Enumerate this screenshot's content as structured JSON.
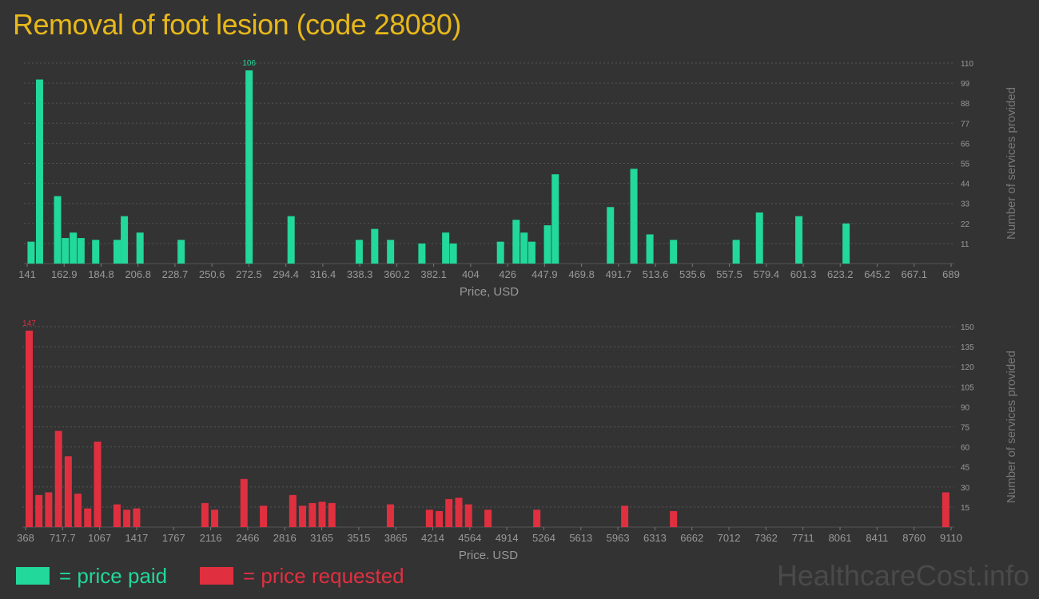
{
  "title": "Removal of foot lesion (code 28080)",
  "legend": {
    "paid_label": "= price paid",
    "requested_label": "= price requested"
  },
  "watermark": "HealthcareCost.info",
  "colors": {
    "background": "#333333",
    "title": "#e8b81a",
    "paid": "#22d89a",
    "requested": "#e03040",
    "axis_text": "#999999"
  },
  "chart_data": [
    {
      "type": "bar",
      "series_name": "price paid",
      "xlabel": "Price, USD",
      "ylabel": "Number of services provided",
      "x_range": [
        141,
        689
      ],
      "x_ticks": [
        "141",
        "162.9",
        "184.8",
        "206.8",
        "228.7",
        "250.6",
        "272.5",
        "294.4",
        "316.4",
        "338.3",
        "360.2",
        "382.1",
        "404",
        "426",
        "447.9",
        "469.8",
        "491.7",
        "513.6",
        "535.6",
        "557.5",
        "579.4",
        "601.3",
        "623.2",
        "645.2",
        "667.1",
        "689"
      ],
      "y_ticks": [
        11,
        22,
        33,
        44,
        55,
        66,
        77,
        88,
        99,
        110
      ],
      "ylim": [
        0,
        110
      ],
      "peak_label": "106",
      "grid": true,
      "bars": [
        {
          "x": 141.2,
          "y": 12
        },
        {
          "x": 146.2,
          "y": 101
        },
        {
          "x": 156.9,
          "y": 37
        },
        {
          "x": 161.5,
          "y": 14
        },
        {
          "x": 166.2,
          "y": 17
        },
        {
          "x": 170.8,
          "y": 14
        },
        {
          "x": 179.5,
          "y": 13
        },
        {
          "x": 192.2,
          "y": 13
        },
        {
          "x": 196.5,
          "y": 26
        },
        {
          "x": 205.8,
          "y": 17
        },
        {
          "x": 230.2,
          "y": 13
        },
        {
          "x": 270.5,
          "y": 106
        },
        {
          "x": 295.4,
          "y": 26
        },
        {
          "x": 335.8,
          "y": 13
        },
        {
          "x": 345.0,
          "y": 19
        },
        {
          "x": 354.4,
          "y": 13
        },
        {
          "x": 373.0,
          "y": 11
        },
        {
          "x": 387.1,
          "y": 17
        },
        {
          "x": 391.6,
          "y": 11
        },
        {
          "x": 419.6,
          "y": 12
        },
        {
          "x": 428.9,
          "y": 24
        },
        {
          "x": 433.6,
          "y": 17
        },
        {
          "x": 438.2,
          "y": 12
        },
        {
          "x": 447.5,
          "y": 21
        },
        {
          "x": 452.1,
          "y": 49
        },
        {
          "x": 484.8,
          "y": 31
        },
        {
          "x": 498.7,
          "y": 52
        },
        {
          "x": 508.2,
          "y": 16
        },
        {
          "x": 522.2,
          "y": 13
        },
        {
          "x": 559.4,
          "y": 13
        },
        {
          "x": 573.2,
          "y": 28
        },
        {
          "x": 596.6,
          "y": 26
        },
        {
          "x": 624.6,
          "y": 22
        }
      ]
    },
    {
      "type": "bar",
      "series_name": "price requested",
      "xlabel": "Price, USD",
      "ylabel": "Number of services provided",
      "x_range": [
        368,
        9110
      ],
      "x_ticks": [
        "368",
        "717.7",
        "1067",
        "1417",
        "1767",
        "2116",
        "2466",
        "2816",
        "3165",
        "3515",
        "3865",
        "4214",
        "4564",
        "4914",
        "5264",
        "5613",
        "5963",
        "6313",
        "6662",
        "7012",
        "7362",
        "7711",
        "8061",
        "8411",
        "8760",
        "9110"
      ],
      "y_ticks": [
        15,
        30,
        45,
        60,
        75,
        90,
        105,
        120,
        135,
        150
      ],
      "ylim": [
        0,
        150
      ],
      "peak_label": "147",
      "grid": true,
      "bars": [
        {
          "x": 368,
          "y": 147
        },
        {
          "x": 460,
          "y": 24
        },
        {
          "x": 552,
          "y": 26
        },
        {
          "x": 645,
          "y": 72
        },
        {
          "x": 737,
          "y": 53
        },
        {
          "x": 829,
          "y": 25
        },
        {
          "x": 921,
          "y": 14
        },
        {
          "x": 1014,
          "y": 64
        },
        {
          "x": 1198,
          "y": 17
        },
        {
          "x": 1290,
          "y": 13
        },
        {
          "x": 1383,
          "y": 14
        },
        {
          "x": 2028,
          "y": 18
        },
        {
          "x": 2120,
          "y": 13
        },
        {
          "x": 2397,
          "y": 36
        },
        {
          "x": 2581,
          "y": 16
        },
        {
          "x": 2858,
          "y": 24
        },
        {
          "x": 2950,
          "y": 16
        },
        {
          "x": 3043,
          "y": 18
        },
        {
          "x": 3135,
          "y": 19
        },
        {
          "x": 3227,
          "y": 18
        },
        {
          "x": 3780,
          "y": 17
        },
        {
          "x": 4149,
          "y": 13
        },
        {
          "x": 4241,
          "y": 12
        },
        {
          "x": 4333,
          "y": 21
        },
        {
          "x": 4426,
          "y": 22
        },
        {
          "x": 4518,
          "y": 17
        },
        {
          "x": 4702,
          "y": 13
        },
        {
          "x": 5163,
          "y": 13
        },
        {
          "x": 5993,
          "y": 16
        },
        {
          "x": 6454,
          "y": 12
        },
        {
          "x": 9026,
          "y": 26
        }
      ]
    }
  ]
}
